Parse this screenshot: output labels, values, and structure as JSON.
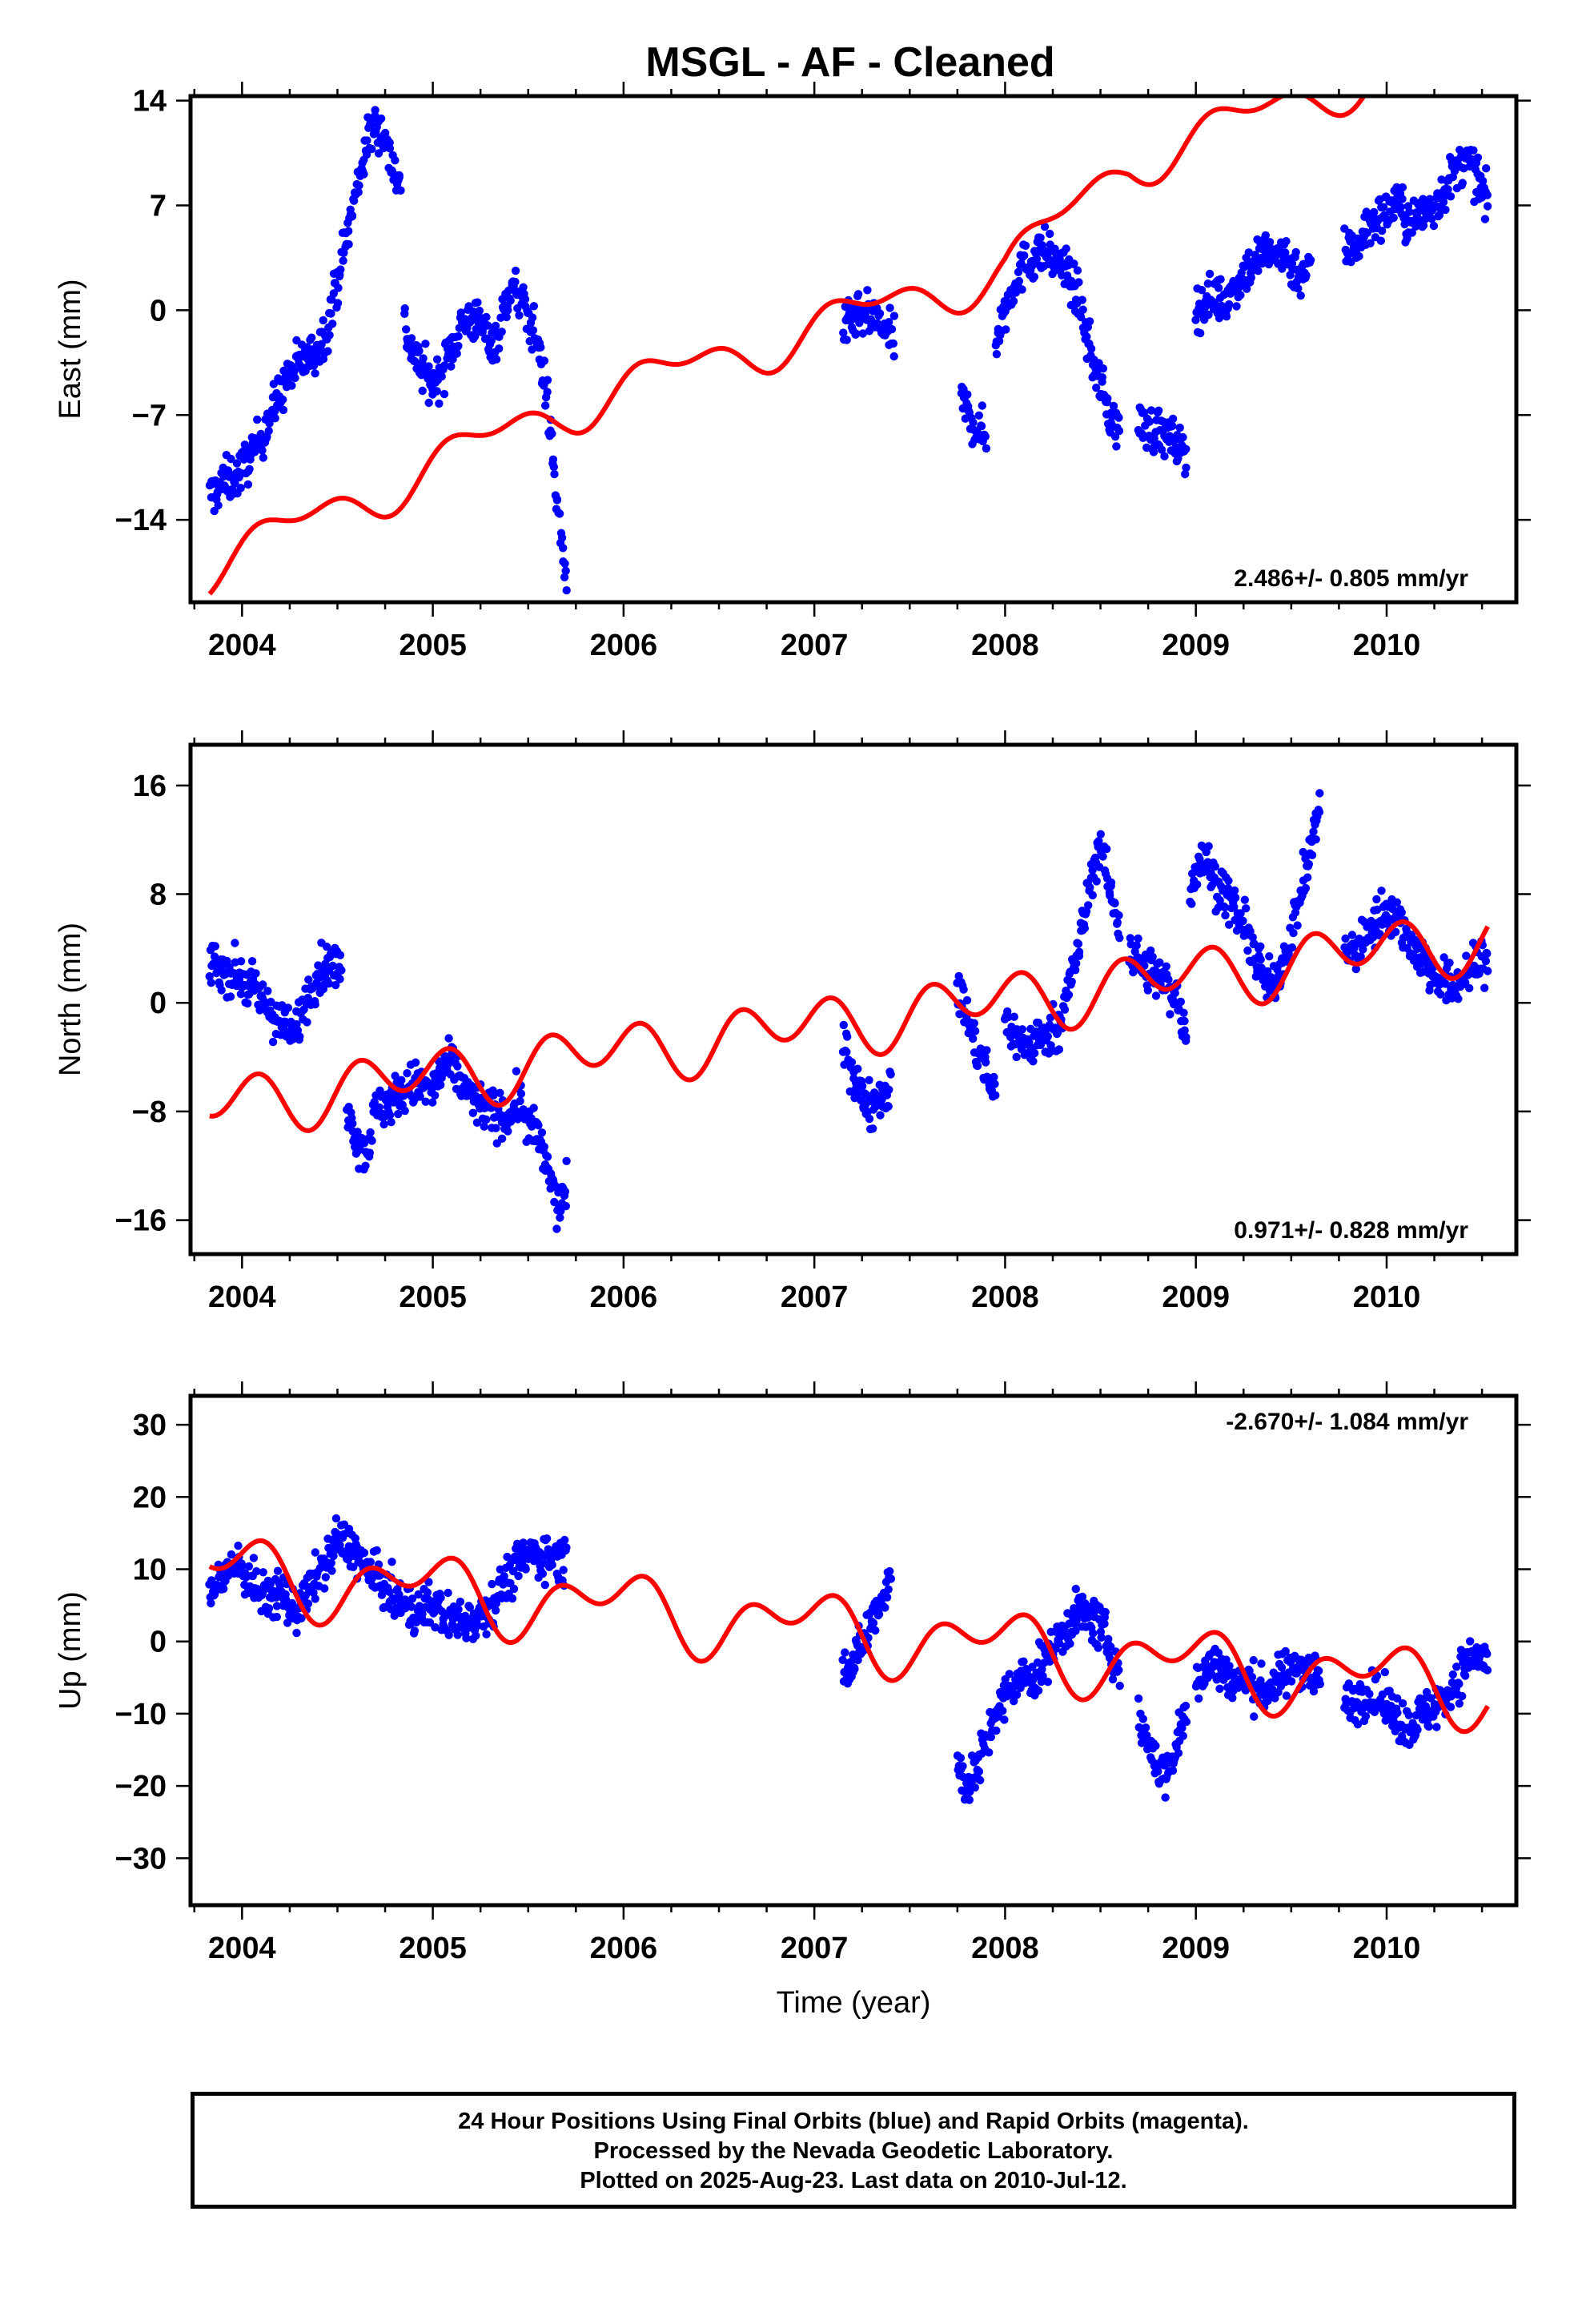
{
  "title": "MSGL  - AF - Cleaned",
  "colors": {
    "data": "#0000ff",
    "model": "#ff0000",
    "frame": "#000000"
  },
  "footer": {
    "line1": "24 Hour Positions Using Final Orbits (blue) and Rapid Orbits (magenta).",
    "line2": "Processed by the Nevada Geodetic Laboratory.",
    "line3": "Plotted on 2025-Aug-23. Last data on 2010-Jul-12."
  },
  "chart_data": [
    {
      "type": "scatter",
      "name": "east",
      "ylabel": "East (mm)",
      "xlabel": "",
      "xlim": [
        2003.73,
        2010.68
      ],
      "ylim": [
        -19.5,
        14.3
      ],
      "xticks": [
        2004,
        2005,
        2006,
        2007,
        2008,
        2009,
        2010
      ],
      "yticks": [
        -14,
        -7,
        0,
        7,
        14
      ],
      "rate_label": "2.486+/- 0.805 mm/yr",
      "rate_position": "bottom-right",
      "series": [
        {
          "name": "Final Orbits (blue)",
          "segments": [
            {
              "t": [
                2003.83,
                2003.9,
                2003.98,
                2004.08,
                2004.15,
                2004.22,
                2004.3,
                2004.38,
                2004.45,
                2004.5,
                2004.55,
                2004.6,
                2004.65,
                2004.7,
                2004.75,
                2004.78,
                2004.83
              ],
              "y": [
                -12.5,
                -11.5,
                -11,
                -9,
                -7,
                -5,
                -3.5,
                -3,
                -1,
                2,
                5,
                8,
                11,
                12.5,
                11.5,
                10,
                8.5
              ]
            },
            {
              "t": [
                2004.85,
                2004.9,
                2004.95,
                2005.0,
                2005.05,
                2005.1,
                2005.15,
                2005.2,
                2005.25,
                2005.3,
                2005.35,
                2005.4,
                2005.45,
                2005.5,
                2005.55,
                2005.6,
                2005.63,
                2005.66,
                2005.7
              ],
              "y": [
                -1,
                -3,
                -4,
                -5,
                -4,
                -2.5,
                -1,
                -0.5,
                -1,
                -2,
                -1.5,
                1.5,
                1,
                -0.5,
                -2,
                -6,
                -10,
                -14,
                -18
              ]
            },
            {
              "t": [
                2007.15,
                2007.22,
                2007.3,
                2007.38,
                2007.42
              ],
              "y": [
                -1.5,
                -0.5,
                -0.5,
                -1.5,
                -2
              ]
            },
            {
              "t": [
                2007.77,
                2007.81,
                2007.86,
                2007.9
              ],
              "y": [
                -6,
                -7,
                -8,
                -8.5
              ]
            },
            {
              "t": [
                2007.95,
                2008.0,
                2008.05,
                2008.1,
                2008.15,
                2008.2,
                2008.25,
                2008.3,
                2008.35,
                2008.4,
                2008.45,
                2008.5,
                2008.55,
                2008.6
              ],
              "y": [
                -2,
                0,
                2,
                3,
                3.5,
                4,
                3.5,
                3,
                2,
                0,
                -3,
                -5,
                -7,
                -8
              ]
            },
            {
              "t": [
                2008.7,
                2008.75,
                2008.8,
                2008.85,
                2008.9,
                2008.95
              ],
              "y": [
                -7.5,
                -8,
                -8,
                -8.5,
                -9,
                -9.5
              ]
            },
            {
              "t": [
                2009.0,
                2009.05,
                2009.1,
                2009.15,
                2009.2,
                2009.25,
                2009.3,
                2009.35,
                2009.4,
                2009.45,
                2009.5,
                2009.55,
                2009.6
              ],
              "y": [
                0,
                0.5,
                1,
                0.5,
                1.5,
                2.5,
                3,
                4,
                3.5,
                4,
                3,
                2.5,
                3
              ]
            },
            {
              "t": [
                2009.78,
                2009.85,
                2009.9,
                2009.95,
                2010.0,
                2010.05,
                2010.1,
                2010.15,
                2010.2,
                2010.25,
                2010.3,
                2010.35,
                2010.4,
                2010.45,
                2010.5,
                2010.53
              ],
              "y": [
                4,
                4.5,
                5.5,
                6,
                6.5,
                7.5,
                6,
                6,
                6.5,
                7,
                8,
                9,
                10,
                9.5,
                8,
                7
              ]
            }
          ]
        },
        {
          "name": "model",
          "model": true,
          "c": 1.3,
          "rate": 2.486,
          "t0": 2007.0,
          "a1": 1.3,
          "p1": 0.0,
          "a2": 0.8,
          "p2": 1.0,
          "knots": [
            [
              2003.83,
              -10.5
            ],
            [
              2005.7,
              -4.5
            ],
            [
              2008.0,
              -1.0
            ],
            [
              2008.65,
              4.5
            ],
            [
              2010.53,
              8.5
            ]
          ]
        }
      ]
    },
    {
      "type": "scatter",
      "name": "north",
      "ylabel": "North (mm)",
      "xlabel": "",
      "xlim": [
        2003.73,
        2010.68
      ],
      "ylim": [
        -18.5,
        19
      ],
      "xticks": [
        2004,
        2005,
        2006,
        2007,
        2008,
        2009,
        2010
      ],
      "yticks": [
        -16,
        -8,
        0,
        8,
        16
      ],
      "rate_label": "0.971+/- 0.828 mm/yr",
      "rate_position": "bottom-right",
      "series": [
        {
          "name": "Final Orbits (blue)",
          "segments": [
            {
              "t": [
                2003.83,
                2003.9,
                2003.98,
                2004.05,
                2004.12,
                2004.2,
                2004.27,
                2004.35,
                2004.42,
                2004.48,
                2004.52
              ],
              "y": [
                3,
                2.5,
                2,
                1,
                0,
                -1.5,
                -2.5,
                1,
                2.5,
                3,
                2
              ]
            },
            {
              "t": [
                2004.55,
                2004.6,
                2004.65,
                2004.7,
                2004.8,
                2004.9,
                2005.0,
                2005.05,
                2005.1,
                2005.2,
                2005.3,
                2005.4,
                2005.45,
                2005.5,
                2005.55,
                2005.6,
                2005.65,
                2005.7
              ],
              "y": [
                -7,
                -10,
                -11,
                -8,
                -7,
                -6,
                -6.5,
                -5,
                -4.5,
                -7,
                -8,
                -8.5,
                -7,
                -9,
                -10,
                -12,
                -15,
                -14
              ]
            },
            {
              "t": [
                2007.15,
                2007.2,
                2007.25,
                2007.3,
                2007.35,
                2007.4
              ],
              "y": [
                -3,
                -5,
                -7,
                -7.5,
                -6.5,
                -6.5
              ]
            },
            {
              "t": [
                2007.75,
                2007.8,
                2007.85,
                2007.9,
                2007.95
              ],
              "y": [
                1,
                -1,
                -3.5,
                -5,
                -7
              ]
            },
            {
              "t": [
                2008.0,
                2008.05,
                2008.1,
                2008.15,
                2008.2,
                2008.25,
                2008.3,
                2008.35,
                2008.4,
                2008.45,
                2008.5,
                2008.55,
                2008.6
              ],
              "y": [
                -1,
                -2.5,
                -3,
                -3,
                -2.5,
                -2,
                -1,
                2,
                5,
                9,
                12,
                8,
                6
              ]
            },
            {
              "t": [
                2008.65,
                2008.7,
                2008.8,
                2008.9,
                2008.95
              ],
              "y": [
                4,
                3,
                2,
                0.5,
                -2
              ]
            },
            {
              "t": [
                2008.97,
                2009.0,
                2009.05,
                2009.1,
                2009.15,
                2009.2,
                2009.25,
                2009.3,
                2009.35,
                2009.4,
                2009.45,
                2009.5,
                2009.55,
                2009.6,
                2009.65
              ],
              "y": [
                8,
                10,
                10.5,
                9,
                8,
                7,
                5.5,
                4,
                2,
                1,
                3,
                5,
                8,
                11,
                15
              ]
            },
            {
              "t": [
                2009.78,
                2009.85,
                2009.9,
                2009.95,
                2010.0,
                2010.05,
                2010.1,
                2010.15,
                2010.2,
                2010.25,
                2010.3,
                2010.35,
                2010.4,
                2010.45,
                2010.5,
                2010.53
              ],
              "y": [
                3.5,
                4,
                5,
                6,
                7,
                6.5,
                5,
                4,
                3,
                2,
                1.5,
                1,
                2,
                2.5,
                3,
                3
              ]
            }
          ]
        },
        {
          "name": "model",
          "model": true,
          "c": -1.0,
          "rate": 0.971,
          "t0": 2007.0,
          "a1": 1.0,
          "p1": 2.5,
          "a2": 1.8,
          "p2": 0.3,
          "knots": [
            [
              2003.83,
              -3.5
            ],
            [
              2010.53,
              2.5
            ]
          ]
        }
      ]
    },
    {
      "type": "scatter",
      "name": "up",
      "ylabel": "Up (mm)",
      "xlabel": "Time (year)",
      "xlim": [
        2003.73,
        2010.68
      ],
      "ylim": [
        -36.5,
        34
      ],
      "xticks": [
        2004,
        2005,
        2006,
        2007,
        2008,
        2009,
        2010
      ],
      "yticks": [
        -30,
        -20,
        -10,
        0,
        10,
        20,
        30
      ],
      "rate_label": "-2.670+/- 1.084 mm/yr",
      "rate_position": "top-right",
      "series": [
        {
          "name": "Final Orbits (blue)",
          "segments": [
            {
              "t": [
                2003.83,
                2003.9,
                2003.98,
                2004.05,
                2004.12,
                2004.2,
                2004.27,
                2004.35,
                2004.42,
                2004.5,
                2004.58,
                2004.65,
                2004.72,
                2004.8,
                2004.9,
                2005.0,
                2005.1,
                2005.2,
                2005.3,
                2005.4,
                2005.5,
                2005.6,
                2005.7
              ],
              "y": [
                7,
                9,
                11,
                8,
                6,
                7,
                4,
                7,
                10,
                14,
                13,
                10,
                8,
                6,
                4,
                5,
                3,
                3,
                5,
                9,
                12,
                12,
                11
              ]
            },
            {
              "t": [
                2007.15,
                2007.2,
                2007.25,
                2007.3,
                2007.35,
                2007.4
              ],
              "y": [
                -2,
                -4,
                0,
                3,
                6,
                9
              ]
            },
            {
              "t": [
                2007.75,
                2007.8,
                2007.85,
                2007.9,
                2007.95,
                2008.0,
                2008.05,
                2008.1,
                2008.15,
                2008.2,
                2008.25,
                2008.3,
                2008.35,
                2008.4,
                2008.45,
                2008.5,
                2008.55,
                2008.6
              ],
              "y": [
                -17,
                -20,
                -18,
                -14,
                -10,
                -8,
                -6,
                -5,
                -5,
                -3,
                -1,
                1,
                3,
                4,
                3,
                2,
                -1,
                -4
              ]
            },
            {
              "t": [
                2008.7,
                2008.75,
                2008.8,
                2008.85,
                2008.9,
                2008.95
              ],
              "y": [
                -11,
                -14,
                -17,
                -19,
                -14,
                -10
              ]
            },
            {
              "t": [
                2009.0,
                2009.05,
                2009.1,
                2009.15,
                2009.2,
                2009.25,
                2009.3,
                2009.35,
                2009.4,
                2009.45,
                2009.5,
                2009.55,
                2009.6,
                2009.65
              ],
              "y": [
                -5,
                -4,
                -3,
                -4,
                -6,
                -5,
                -6,
                -7,
                -6,
                -5,
                -4,
                -3,
                -4,
                -5
              ]
            },
            {
              "t": [
                2009.78,
                2009.85,
                2009.9,
                2009.95,
                2010.0,
                2010.05,
                2010.1,
                2010.15,
                2010.2,
                2010.25,
                2010.3,
                2010.35,
                2010.4,
                2010.45,
                2010.5,
                2010.53
              ],
              "y": [
                -9,
                -8,
                -7,
                -8,
                -9,
                -10,
                -12,
                -11,
                -10,
                -9,
                -8,
                -6,
                -4,
                -2,
                -2,
                -3
              ]
            }
          ]
        },
        {
          "name": "model",
          "model": true,
          "c": 2.0,
          "rate": -2.67,
          "t0": 2007.0,
          "a1": 3.5,
          "p1": 1.9,
          "a2": 3.0,
          "p2": -0.2,
          "knots": [
            [
              2003.83,
              -0.5
            ],
            [
              2005.7,
              0.0
            ],
            [
              2008.65,
              0.0
            ],
            [
              2010.53,
              1.0
            ]
          ]
        }
      ]
    }
  ]
}
